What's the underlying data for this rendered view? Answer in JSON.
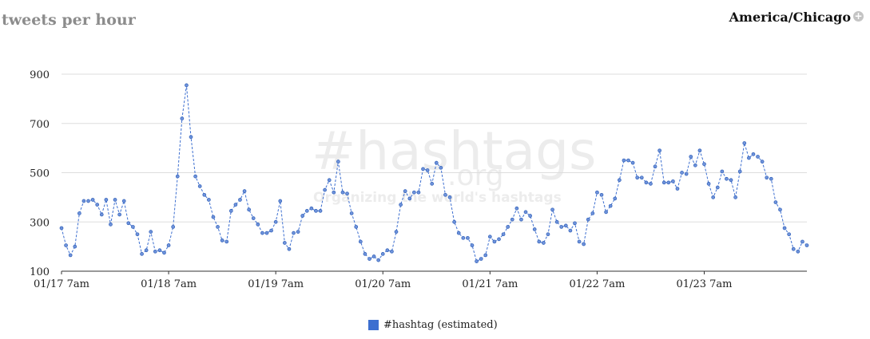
{
  "header": {
    "title": "tweets per hour",
    "timezone": "America/Chicago",
    "timezone_button_icon": "plus-circle-icon"
  },
  "watermark": {
    "line1": "#hashtags",
    "line2": ".org",
    "tagline": "Organizing the world's hashtags"
  },
  "chart_data": {
    "type": "line",
    "title": "tweets per hour",
    "xlabel": "",
    "ylabel": "",
    "ylim": [
      100,
      900
    ],
    "yticks": [
      100,
      300,
      500,
      700,
      900
    ],
    "x_tick_labels": [
      "01/17 7am",
      "01/18 7am",
      "01/19 7am",
      "01/20 7am",
      "01/21 7am",
      "01/22 7am",
      "01/23 7am"
    ],
    "x_tick_index": [
      0,
      24,
      48,
      72,
      96,
      120,
      144
    ],
    "grid": true,
    "legend_position": "bottom-center",
    "series": [
      {
        "name": "#hashtag (estimated)",
        "color": "#3d6fd0",
        "values": [
          275,
          205,
          165,
          200,
          335,
          385,
          385,
          390,
          370,
          330,
          390,
          290,
          390,
          330,
          385,
          295,
          280,
          250,
          170,
          185,
          260,
          180,
          185,
          175,
          205,
          280,
          485,
          720,
          855,
          645,
          485,
          445,
          410,
          390,
          320,
          280,
          225,
          220,
          345,
          370,
          390,
          425,
          350,
          315,
          290,
          255,
          255,
          265,
          300,
          385,
          215,
          190,
          255,
          260,
          325,
          345,
          355,
          345,
          345,
          430,
          470,
          420,
          545,
          420,
          415,
          335,
          280,
          220,
          170,
          150,
          160,
          145,
          170,
          185,
          180,
          260,
          370,
          425,
          395,
          420,
          420,
          515,
          510,
          455,
          540,
          520,
          410,
          400,
          300,
          255,
          235,
          235,
          205,
          140,
          150,
          165,
          240,
          220,
          230,
          250,
          280,
          310,
          355,
          310,
          340,
          325,
          270,
          220,
          215,
          250,
          350,
          300,
          280,
          285,
          265,
          295,
          220,
          210,
          310,
          335,
          420,
          410,
          340,
          365,
          395,
          470,
          550,
          550,
          540,
          480,
          480,
          460,
          455,
          525,
          590,
          460,
          460,
          465,
          435,
          500,
          495,
          565,
          530,
          590,
          535,
          455,
          400,
          440,
          505,
          475,
          470,
          400,
          505,
          620,
          560,
          575,
          565,
          545,
          480,
          475,
          380,
          350,
          275,
          250,
          190,
          180,
          220,
          205
        ]
      }
    ]
  }
}
